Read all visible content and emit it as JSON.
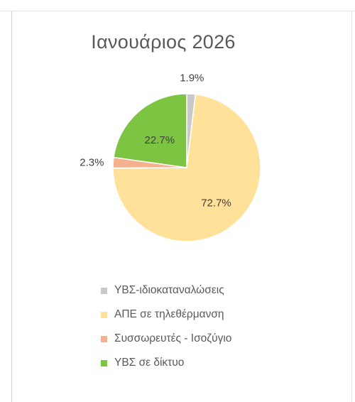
{
  "chart_data": {
    "type": "pie",
    "title": "Ιανουάριος 2026",
    "slices": [
      {
        "label": "ΥΒΣ-ιδιοκαταναλώσεις",
        "value": 1.9,
        "value_label": "1.9%",
        "color": "#c9c9c9"
      },
      {
        "label": "ΑΠΕ σε τηλεθέρμανση",
        "value": 72.7,
        "value_label": "72.7%",
        "color": "#ffe199"
      },
      {
        "label": "Συσσωρευτές - Ισοζύγιο",
        "value": 2.3,
        "value_label": "2.3%",
        "color": "#f4b08f"
      },
      {
        "label": "ΥΒΣ σε δίκτυο",
        "value": 22.7,
        "value_label": "22.7%",
        "color": "#7dc443"
      }
    ],
    "legend_position": "bottom",
    "start_angle": "12 o'clock",
    "direction": "clockwise"
  }
}
